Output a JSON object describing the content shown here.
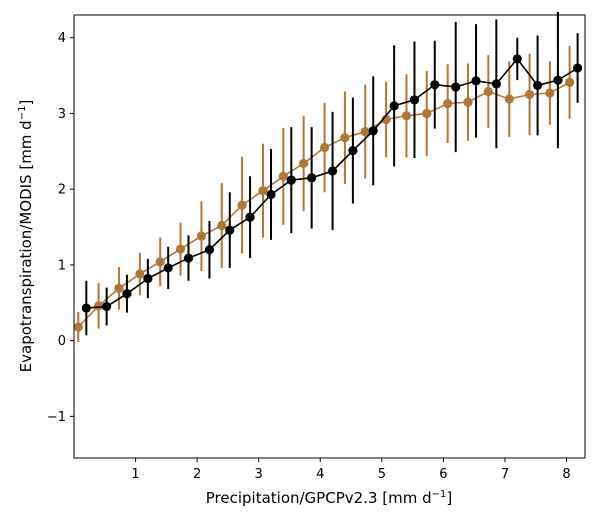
{
  "chart_data": {
    "type": "line",
    "xlabel": "Precipitation/GPCPv2.3 [mm d",
    "xlabel_unit_exp": "−1",
    "xlabel_suffix": "]",
    "ylabel": "Evapotranspiration/MODIS [mm d",
    "ylabel_unit_exp": "−1",
    "ylabel_suffix": "]",
    "xlim": [
      0.0,
      8.3
    ],
    "ylim": [
      -1.55,
      4.3
    ],
    "xticks": [
      1,
      2,
      3,
      4,
      5,
      6,
      7,
      8
    ],
    "yticks": [
      -1,
      0,
      1,
      2,
      3,
      4
    ],
    "grid": false,
    "x": [
      0.2,
      0.53,
      0.86,
      1.2,
      1.53,
      1.86,
      2.2,
      2.53,
      2.86,
      3.2,
      3.53,
      3.86,
      4.2,
      4.53,
      4.86,
      5.2,
      5.53,
      5.86,
      6.2,
      6.53,
      6.86,
      7.2,
      7.53,
      7.86,
      8.18
    ],
    "series": [
      {
        "color": "#b07638",
        "x_offset": -0.13,
        "values": [
          0.18,
          0.46,
          0.69,
          0.88,
          1.04,
          1.21,
          1.38,
          1.52,
          1.79,
          1.98,
          2.17,
          2.34,
          2.55,
          2.68,
          2.76,
          2.92,
          2.97,
          3.0,
          3.13,
          3.15,
          3.29,
          3.19,
          3.25,
          3.27,
          3.41
        ],
        "errors": [
          0.2,
          0.3,
          0.28,
          0.28,
          0.32,
          0.35,
          0.46,
          0.56,
          0.64,
          0.62,
          0.64,
          0.63,
          0.59,
          0.61,
          0.62,
          0.5,
          0.55,
          0.56,
          0.52,
          0.51,
          0.48,
          0.5,
          0.54,
          0.42,
          0.48
        ]
      },
      {
        "color": "#000000",
        "x_offset": 0.0,
        "values": [
          0.43,
          0.45,
          0.62,
          0.82,
          0.96,
          1.09,
          1.2,
          1.46,
          1.63,
          1.93,
          2.12,
          2.15,
          2.24,
          2.51,
          2.77,
          3.1,
          3.18,
          3.38,
          3.35,
          3.43,
          3.39,
          3.72,
          3.37,
          3.44,
          3.6
        ],
        "errors": [
          0.36,
          0.25,
          0.25,
          0.26,
          0.28,
          0.3,
          0.38,
          0.5,
          0.54,
          0.6,
          0.7,
          0.67,
          0.78,
          0.7,
          0.72,
          0.8,
          0.77,
          0.58,
          0.86,
          0.75,
          0.85,
          0.28,
          0.66,
          0.9,
          0.46
        ]
      }
    ]
  }
}
